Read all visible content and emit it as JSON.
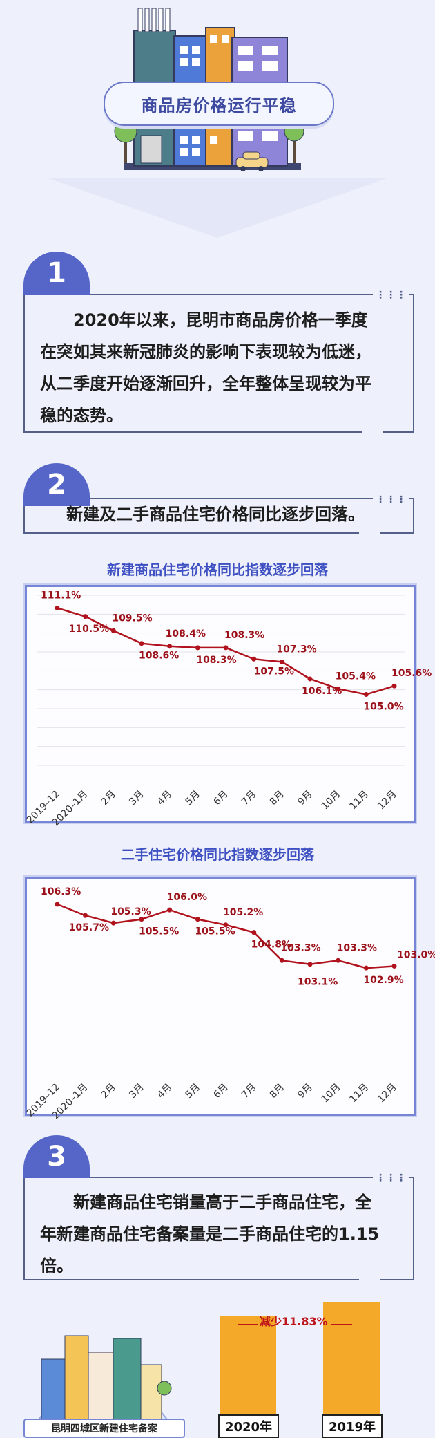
{
  "header": {
    "title": "商品房价格运行平稳"
  },
  "sections": [
    {
      "number": "1",
      "text_lines": [
        "　　2020年以来，昆明市商品房价格一季度",
        "在突如其来新冠肺炎的影响下表现较为低迷，",
        "从二季度开始逐渐回升，全年整体呈现较为平",
        "稳的态势。"
      ]
    },
    {
      "number": "2",
      "text_lines": [
        "新建及二手商品住宅价格同比逐步回落。"
      ]
    },
    {
      "number": "3",
      "text_lines": [
        "　　新建商品住宅销量高于二手商品住宅，全",
        "年新建商品住宅备案量是二手商品住宅的1.15",
        "倍。"
      ]
    }
  ],
  "dots": "•••\n•••",
  "colors": {
    "accent": "#5666c8",
    "line": "#b0131d",
    "bar": "#f4aa28"
  },
  "chart_data": [
    {
      "type": "line",
      "title": "新建商品住宅价格同比指数逐步回落",
      "categories": [
        "2019–12",
        "2020–1月",
        "2月",
        "3月",
        "4月",
        "5月",
        "6月",
        "7月",
        "8月",
        "9月",
        "10月",
        "11月",
        "12月"
      ],
      "values": [
        111.1,
        110.5,
        109.5,
        108.6,
        108.4,
        108.3,
        108.3,
        107.5,
        107.3,
        106.1,
        105.4,
        105.0,
        105.6
      ],
      "labels": [
        "111.1%",
        "110.5%",
        "109.5%",
        "108.6%",
        "108.4%",
        "108.3%",
        "108.3%",
        "107.5%",
        "107.3%",
        "106.1%",
        "105.4%",
        "105.0%",
        "105.6%"
      ],
      "ylim": [
        100,
        112
      ],
      "grid": true
    },
    {
      "type": "line",
      "title": "二手住宅价格同比指数逐步回落",
      "categories": [
        "2019–12",
        "2020–1月",
        "2月",
        "3月",
        "4月",
        "5月",
        "6月",
        "7月",
        "8月",
        "9月",
        "10月",
        "11月",
        "12月"
      ],
      "values": [
        106.3,
        105.7,
        105.3,
        105.5,
        106.0,
        105.5,
        105.2,
        104.8,
        103.3,
        103.1,
        103.3,
        102.9,
        103.0
      ],
      "labels": [
        "106.3%",
        "105.7%",
        "105.3%",
        "105.5%",
        "106.0%",
        "105.5%",
        "105.2%",
        "104.8%",
        "103.3%",
        "103.1%",
        "103.3%",
        "102.9%",
        "103.0%"
      ],
      "ylim": [
        98,
        107
      ],
      "grid": false
    },
    {
      "type": "bar",
      "title": "",
      "categories": [
        "2020年",
        "2019年"
      ],
      "values": [
        0.8817,
        1.0
      ],
      "annotation": "减少11.83%",
      "ylim": [
        0,
        1.0
      ]
    }
  ],
  "bottom": {
    "caption": "昆明四城区新建住宅备案"
  }
}
